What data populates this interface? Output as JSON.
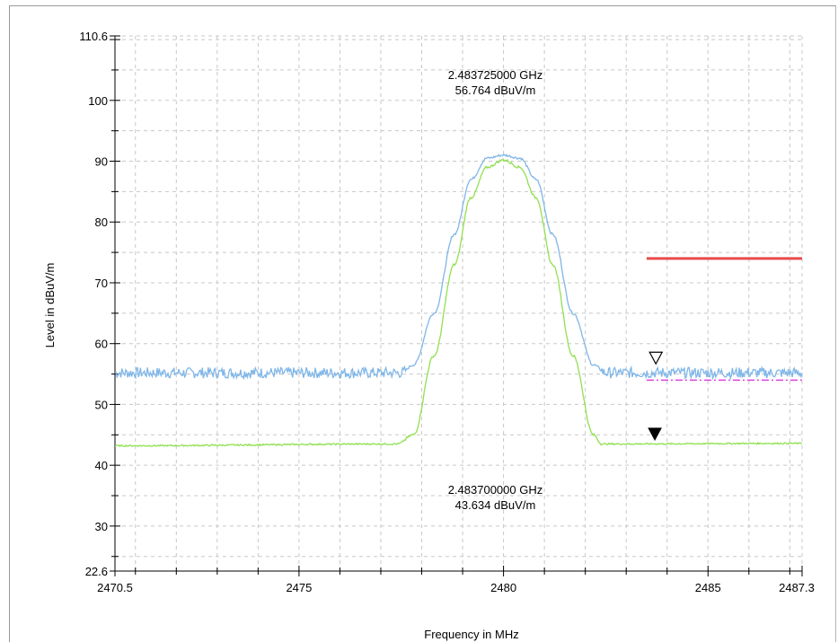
{
  "chart_data": {
    "type": "line",
    "xlabel": "Frequency in MHz",
    "ylabel": "Level in dBuV/m",
    "xlim": [
      2470.5,
      2487.3
    ],
    "ylim": [
      22.6,
      110.6
    ],
    "x_ticks": [
      2470.5,
      2475,
      2480,
      2485,
      2487.3
    ],
    "x_tick_labels": [
      "2470.5",
      "2475",
      "2480",
      "2485",
      "2487.3"
    ],
    "y_ticks": [
      22.6,
      30,
      40,
      50,
      60,
      70,
      80,
      90,
      100,
      110.6
    ],
    "y_tick_labels": [
      "22.6",
      "30",
      "40",
      "50",
      "60",
      "70",
      "80",
      "90",
      "100",
      "110.6"
    ],
    "grid": true,
    "series": [
      {
        "color": "#7fb6e8",
        "x": [
          2470.5,
          2477.5,
          2477.8,
          2478.3,
          2478.8,
          2479.2,
          2479.6,
          2480.0,
          2480.4,
          2480.8,
          2481.2,
          2481.7,
          2482.2,
          2482.5,
          2487.3
        ],
        "y": [
          55.2,
          55.2,
          56.5,
          65.0,
          78.0,
          87.0,
          90.5,
          91.0,
          90.5,
          87.0,
          78.0,
          65.0,
          56.5,
          55.2,
          55.2
        ]
      },
      {
        "color": "#90e050",
        "x": [
          2470.5,
          2477.4,
          2477.8,
          2478.3,
          2478.8,
          2479.2,
          2479.6,
          2480.0,
          2480.4,
          2480.8,
          2481.2,
          2481.7,
          2482.2,
          2482.4,
          2487.3
        ],
        "y": [
          43.2,
          43.5,
          45.0,
          58.0,
          73.0,
          84.0,
          89.0,
          90.2,
          89.0,
          84.0,
          73.0,
          58.0,
          45.0,
          43.5,
          43.6
        ]
      }
    ],
    "limit_lines": [
      {
        "color": "#e84a4a",
        "style": "solid",
        "x": [
          2483.5,
          2487.3
        ],
        "y": 74
      },
      {
        "color": "#e040e0",
        "style": "dash-dot",
        "x": [
          2483.5,
          2487.3
        ],
        "y": 54
      }
    ],
    "markers": [
      {
        "shape": "open-triangle",
        "x": 2483.725,
        "y": 57.7,
        "color": "#000000"
      },
      {
        "shape": "filled-triangle",
        "x": 2483.7,
        "y": 45.2,
        "color": "#000000"
      }
    ],
    "annotations": [
      {
        "freq": "2.483725000 GHz",
        "level": "56.764 dBuV/m",
        "x": 2479.8,
        "y": 103.5
      },
      {
        "freq": "2.483700000 GHz",
        "level": "43.634 dBuV/m",
        "x": 2479.8,
        "y": 35.3
      }
    ]
  }
}
